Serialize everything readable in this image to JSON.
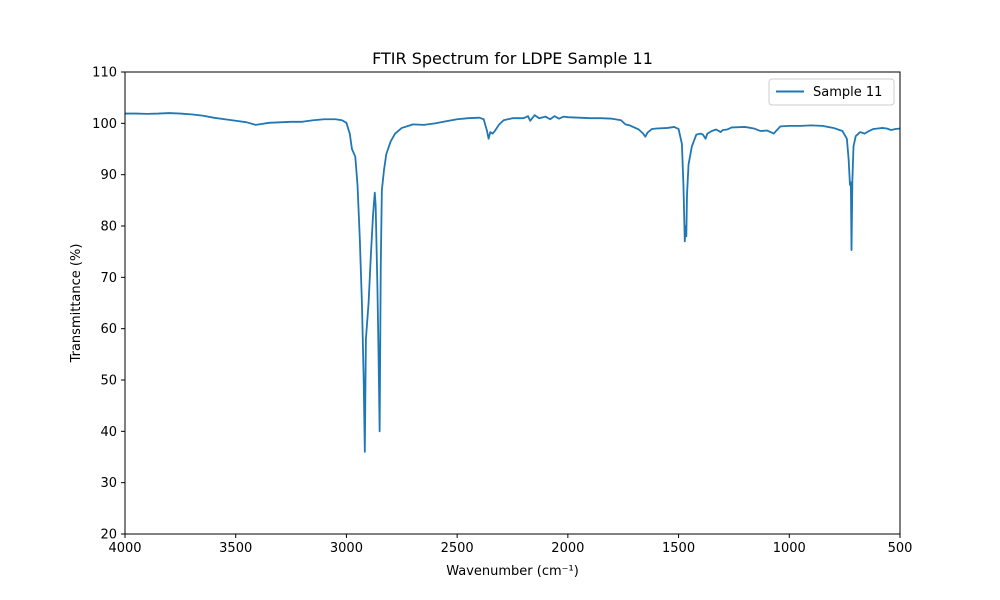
{
  "chart_data": {
    "type": "line",
    "title": "FTIR Spectrum for LDPE Sample 11",
    "xlabel": "Wavenumber (cm⁻¹)",
    "ylabel": "Transmittance (%)",
    "xlim": [
      4000,
      500
    ],
    "ylim": [
      20,
      110
    ],
    "x_ticks": [
      "4000",
      "3500",
      "3000",
      "2500",
      "2000",
      "1500",
      "1000",
      "500"
    ],
    "y_ticks": [
      "20",
      "30",
      "40",
      "50",
      "60",
      "70",
      "80",
      "90",
      "100",
      "110"
    ],
    "grid": false,
    "legend_position": "top-right",
    "series_color": "#1f77b4",
    "series": [
      {
        "name": "Sample 11",
        "points": [
          [
            4000,
            101.9
          ],
          [
            3950,
            101.9
          ],
          [
            3900,
            101.85
          ],
          [
            3850,
            101.9
          ],
          [
            3800,
            102.0
          ],
          [
            3750,
            101.9
          ],
          [
            3700,
            101.75
          ],
          [
            3650,
            101.5
          ],
          [
            3600,
            101.1
          ],
          [
            3550,
            100.8
          ],
          [
            3500,
            100.5
          ],
          [
            3450,
            100.2
          ],
          [
            3410,
            99.7
          ],
          [
            3380,
            99.9
          ],
          [
            3350,
            100.1
          ],
          [
            3300,
            100.2
          ],
          [
            3250,
            100.3
          ],
          [
            3200,
            100.3
          ],
          [
            3150,
            100.6
          ],
          [
            3100,
            100.8
          ],
          [
            3050,
            100.8
          ],
          [
            3020,
            100.6
          ],
          [
            3000,
            100.1
          ],
          [
            2985,
            98.0
          ],
          [
            2975,
            95.0
          ],
          [
            2960,
            93.5
          ],
          [
            2950,
            88.0
          ],
          [
            2940,
            78.0
          ],
          [
            2930,
            65.0
          ],
          [
            2922,
            50.0
          ],
          [
            2917,
            36.0
          ],
          [
            2912,
            58.0
          ],
          [
            2900,
            65.0
          ],
          [
            2890,
            74.0
          ],
          [
            2880,
            82.0
          ],
          [
            2872,
            86.5
          ],
          [
            2868,
            84.0
          ],
          [
            2860,
            68.0
          ],
          [
            2855,
            55.0
          ],
          [
            2850,
            40.0
          ],
          [
            2845,
            72.0
          ],
          [
            2840,
            87.0
          ],
          [
            2830,
            91.0
          ],
          [
            2820,
            94.0
          ],
          [
            2800,
            96.5
          ],
          [
            2780,
            98.0
          ],
          [
            2750,
            99.1
          ],
          [
            2720,
            99.5
          ],
          [
            2700,
            99.8
          ],
          [
            2650,
            99.7
          ],
          [
            2600,
            100.0
          ],
          [
            2550,
            100.4
          ],
          [
            2500,
            100.8
          ],
          [
            2450,
            101.0
          ],
          [
            2400,
            101.1
          ],
          [
            2380,
            100.8
          ],
          [
            2365,
            98.5
          ],
          [
            2358,
            97.0
          ],
          [
            2350,
            98.3
          ],
          [
            2340,
            98.0
          ],
          [
            2330,
            98.5
          ],
          [
            2310,
            99.8
          ],
          [
            2290,
            100.6
          ],
          [
            2250,
            101.0
          ],
          [
            2200,
            101.0
          ],
          [
            2180,
            101.4
          ],
          [
            2170,
            100.5
          ],
          [
            2150,
            101.6
          ],
          [
            2130,
            101.0
          ],
          [
            2100,
            101.3
          ],
          [
            2080,
            100.8
          ],
          [
            2060,
            101.4
          ],
          [
            2040,
            100.9
          ],
          [
            2020,
            101.3
          ],
          [
            2000,
            101.2
          ],
          [
            1950,
            101.1
          ],
          [
            1900,
            101.0
          ],
          [
            1850,
            101.0
          ],
          [
            1800,
            100.9
          ],
          [
            1760,
            100.6
          ],
          [
            1740,
            99.8
          ],
          [
            1720,
            99.6
          ],
          [
            1700,
            99.2
          ],
          [
            1680,
            98.8
          ],
          [
            1660,
            98.0
          ],
          [
            1650,
            97.4
          ],
          [
            1640,
            98.2
          ],
          [
            1620,
            98.9
          ],
          [
            1600,
            99.0
          ],
          [
            1550,
            99.1
          ],
          [
            1520,
            99.3
          ],
          [
            1500,
            98.9
          ],
          [
            1485,
            96.0
          ],
          [
            1478,
            88.0
          ],
          [
            1472,
            77.0
          ],
          [
            1468,
            80.0
          ],
          [
            1465,
            78.0
          ],
          [
            1462,
            86.0
          ],
          [
            1455,
            92.0
          ],
          [
            1440,
            95.5
          ],
          [
            1420,
            97.8
          ],
          [
            1400,
            98.0
          ],
          [
            1390,
            97.8
          ],
          [
            1378,
            97.0
          ],
          [
            1370,
            98.0
          ],
          [
            1350,
            98.5
          ],
          [
            1330,
            98.8
          ],
          [
            1310,
            98.3
          ],
          [
            1300,
            98.7
          ],
          [
            1280,
            98.8
          ],
          [
            1260,
            99.2
          ],
          [
            1200,
            99.3
          ],
          [
            1160,
            99.0
          ],
          [
            1130,
            98.5
          ],
          [
            1100,
            98.6
          ],
          [
            1080,
            98.2
          ],
          [
            1070,
            98.0
          ],
          [
            1060,
            98.5
          ],
          [
            1040,
            99.4
          ],
          [
            1000,
            99.5
          ],
          [
            950,
            99.5
          ],
          [
            900,
            99.6
          ],
          [
            850,
            99.5
          ],
          [
            800,
            99.1
          ],
          [
            760,
            98.5
          ],
          [
            740,
            97.0
          ],
          [
            732,
            93.0
          ],
          [
            726,
            88.0
          ],
          [
            722,
            88.5
          ],
          [
            719,
            75.3
          ],
          [
            715,
            89.0
          ],
          [
            710,
            95.5
          ],
          [
            700,
            97.5
          ],
          [
            680,
            98.3
          ],
          [
            660,
            98.0
          ],
          [
            640,
            98.5
          ],
          [
            620,
            98.9
          ],
          [
            600,
            99.0
          ],
          [
            580,
            99.1
          ],
          [
            560,
            99.0
          ],
          [
            540,
            98.7
          ],
          [
            520,
            98.9
          ],
          [
            500,
            99.0
          ]
        ]
      }
    ]
  }
}
